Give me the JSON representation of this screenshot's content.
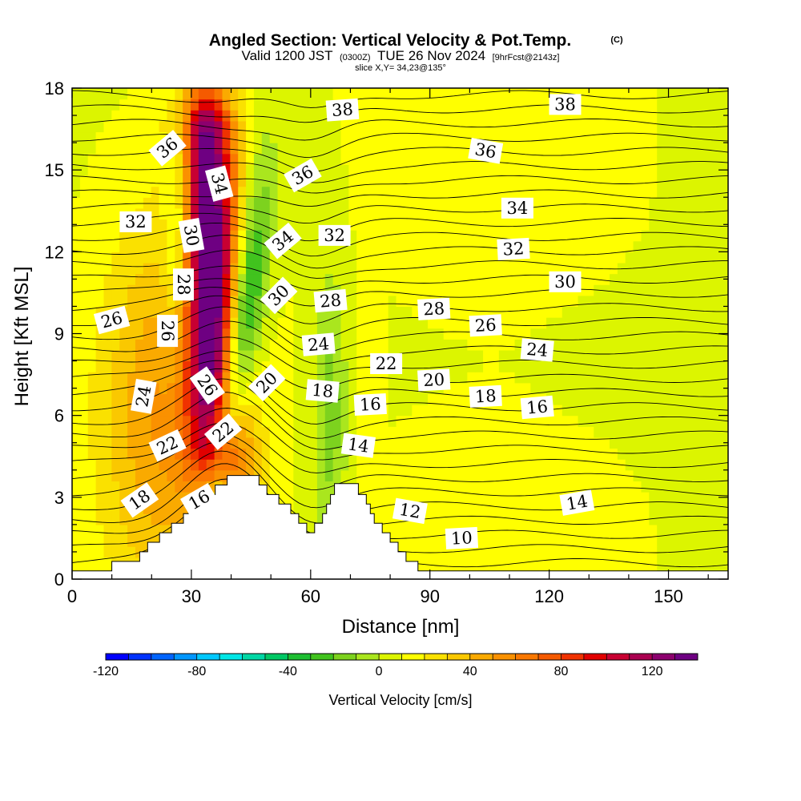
{
  "header": {
    "title": "Angled Section: Vertical Velocity & Pot.Temp.",
    "copyright": "(C)",
    "valid_prefix": "Valid 1200 JST",
    "valid_z": "(0300Z)",
    "valid_date": "TUE 26 Nov 2024",
    "forecast": "[9hrFcst@2143z]",
    "slice": "slice X,Y= 34,23@135°"
  },
  "chart_data": {
    "type": "heatmap",
    "xlabel": "Distance [nm]",
    "ylabel": "Height [Kft MSL]",
    "xlim": [
      0,
      165
    ],
    "ylim": [
      0,
      18
    ],
    "x_ticks": [
      "0",
      "30",
      "60",
      "90",
      "120",
      "150"
    ],
    "x_tick_values": [
      0,
      30,
      60,
      90,
      120,
      150
    ],
    "y_ticks": [
      "0",
      "3",
      "6",
      "9",
      "12",
      "15",
      "18"
    ],
    "y_tick_values": [
      0,
      3,
      6,
      9,
      12,
      15,
      18
    ],
    "colorbar": {
      "label": "Vertical Velocity [cm/s]",
      "min": -120,
      "max": 140,
      "step": 10,
      "tick_labels": [
        "-120",
        "-80",
        "-40",
        "0",
        "40",
        "80",
        "120"
      ],
      "tick_values": [
        -120,
        -80,
        -40,
        0,
        40,
        80,
        120
      ],
      "colors": [
        "#0000ff",
        "#0032ff",
        "#0064ff",
        "#0096ff",
        "#00c8ff",
        "#00e6e6",
        "#00d7a5",
        "#00c864",
        "#1ebe32",
        "#41c31e",
        "#7dd21e",
        "#aae61e",
        "#dcf500",
        "#ffff00",
        "#fae100",
        "#fac800",
        "#faaa00",
        "#fa9100",
        "#fa7800",
        "#f55a00",
        "#f03200",
        "#e10000",
        "#c80032",
        "#aa0050",
        "#8c006e",
        "#6e0082"
      ]
    },
    "terrain_profile": [
      [
        0,
        0.3
      ],
      [
        10,
        0.3
      ],
      [
        10,
        0.65
      ],
      [
        17,
        0.65
      ],
      [
        17,
        1.0
      ],
      [
        19,
        1.0
      ],
      [
        19,
        1.35
      ],
      [
        22,
        1.35
      ],
      [
        22,
        1.7
      ],
      [
        25,
        1.7
      ],
      [
        25,
        2.05
      ],
      [
        28,
        2.05
      ],
      [
        28,
        2.4
      ],
      [
        30,
        2.4
      ],
      [
        30,
        2.75
      ],
      [
        33,
        2.75
      ],
      [
        33,
        3.1
      ],
      [
        36,
        3.1
      ],
      [
        36,
        3.45
      ],
      [
        39,
        3.45
      ],
      [
        39,
        3.8
      ],
      [
        47,
        3.8
      ],
      [
        47,
        3.45
      ],
      [
        49,
        3.45
      ],
      [
        49,
        3.1
      ],
      [
        52,
        3.1
      ],
      [
        52,
        2.75
      ],
      [
        55,
        2.75
      ],
      [
        55,
        2.4
      ],
      [
        57,
        2.4
      ],
      [
        57,
        2.05
      ],
      [
        59,
        2.05
      ],
      [
        59,
        1.7
      ],
      [
        61,
        1.7
      ],
      [
        61,
        2.05
      ],
      [
        63,
        2.05
      ],
      [
        63,
        2.4
      ],
      [
        64,
        2.4
      ],
      [
        64,
        2.75
      ],
      [
        65,
        2.75
      ],
      [
        65,
        3.1
      ],
      [
        66,
        3.1
      ],
      [
        66,
        3.5
      ],
      [
        72,
        3.5
      ],
      [
        72,
        3.1
      ],
      [
        74,
        3.1
      ],
      [
        74,
        2.75
      ],
      [
        75,
        2.75
      ],
      [
        75,
        2.4
      ],
      [
        76,
        2.4
      ],
      [
        76,
        2.05
      ],
      [
        78,
        2.05
      ],
      [
        78,
        1.7
      ],
      [
        80,
        1.7
      ],
      [
        80,
        1.35
      ],
      [
        82,
        1.35
      ],
      [
        82,
        1.0
      ],
      [
        84,
        1.0
      ],
      [
        84,
        0.65
      ],
      [
        87,
        0.65
      ],
      [
        87,
        0.3
      ],
      [
        165,
        0.3
      ]
    ],
    "contour_labels": [
      {
        "text": "38",
        "x": 68,
        "y": 17.2,
        "rot": -4
      },
      {
        "text": "38",
        "x": 124,
        "y": 17.4,
        "rot": 0
      },
      {
        "text": "36",
        "x": 24,
        "y": 15.8,
        "rot": -40
      },
      {
        "text": "36",
        "x": 58,
        "y": 14.8,
        "rot": -30
      },
      {
        "text": "36",
        "x": 104,
        "y": 15.7,
        "rot": 10
      },
      {
        "text": "34",
        "x": 37,
        "y": 14.5,
        "rot": 75
      },
      {
        "text": "34",
        "x": 53,
        "y": 12.4,
        "rot": -40
      },
      {
        "text": "34",
        "x": 112,
        "y": 13.6,
        "rot": 0
      },
      {
        "text": "32",
        "x": 16,
        "y": 13.1,
        "rot": 0
      },
      {
        "text": "32",
        "x": 66,
        "y": 12.6,
        "rot": 0
      },
      {
        "text": "32",
        "x": 111,
        "y": 12.1,
        "rot": -3
      },
      {
        "text": "30",
        "x": 30,
        "y": 12.6,
        "rot": 80
      },
      {
        "text": "30",
        "x": 52,
        "y": 10.4,
        "rot": -45
      },
      {
        "text": "30",
        "x": 124,
        "y": 10.9,
        "rot": 0
      },
      {
        "text": "28",
        "x": 28,
        "y": 10.8,
        "rot": 90
      },
      {
        "text": "28",
        "x": 65,
        "y": 10.2,
        "rot": -5
      },
      {
        "text": "28",
        "x": 91,
        "y": 9.9,
        "rot": -3
      },
      {
        "text": "26",
        "x": 10,
        "y": 9.5,
        "rot": -15
      },
      {
        "text": "26",
        "x": 24,
        "y": 9.1,
        "rot": 90
      },
      {
        "text": "26",
        "x": 104,
        "y": 9.3,
        "rot": -3
      },
      {
        "text": "24",
        "x": 18,
        "y": 6.7,
        "rot": -80
      },
      {
        "text": "24",
        "x": 62,
        "y": 8.6,
        "rot": -5
      },
      {
        "text": "24",
        "x": 117,
        "y": 8.4,
        "rot": 5
      },
      {
        "text": "26",
        "x": 34,
        "y": 7.1,
        "rot": 55
      },
      {
        "text": "22",
        "x": 79,
        "y": 7.9,
        "rot": 0
      },
      {
        "text": "22",
        "x": 24,
        "y": 4.9,
        "rot": -25
      },
      {
        "text": "22",
        "x": 38,
        "y": 5.4,
        "rot": -40
      },
      {
        "text": "20",
        "x": 49,
        "y": 7.2,
        "rot": -45
      },
      {
        "text": "20",
        "x": 91,
        "y": 7.3,
        "rot": -3
      },
      {
        "text": "18",
        "x": 63,
        "y": 6.9,
        "rot": 5
      },
      {
        "text": "18",
        "x": 104,
        "y": 6.7,
        "rot": -3
      },
      {
        "text": "16",
        "x": 75,
        "y": 6.4,
        "rot": -3
      },
      {
        "text": "16",
        "x": 117,
        "y": 6.3,
        "rot": -5
      },
      {
        "text": "18",
        "x": 17,
        "y": 2.9,
        "rot": -35
      },
      {
        "text": "16",
        "x": 32,
        "y": 2.9,
        "rot": -30
      },
      {
        "text": "14",
        "x": 72,
        "y": 4.9,
        "rot": 8
      },
      {
        "text": "14",
        "x": 127,
        "y": 2.8,
        "rot": -10
      },
      {
        "text": "12",
        "x": 85,
        "y": 2.5,
        "rot": 10
      },
      {
        "text": "10",
        "x": 98,
        "y": 1.5,
        "rot": -3
      }
    ]
  }
}
